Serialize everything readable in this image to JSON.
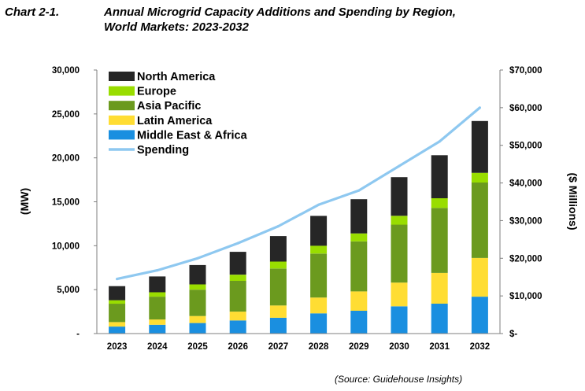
{
  "header": {
    "label": "Chart 2-1.",
    "title_line1": "Annual Microgrid Capacity Additions and Spending by Region,",
    "title_line2": "World Markets: 2023-2032"
  },
  "source": "(Source: Guidehouse Insights)",
  "chart_data": {
    "type": "bar",
    "stacked": true,
    "categories": [
      "2023",
      "2024",
      "2025",
      "2026",
      "2027",
      "2028",
      "2029",
      "2030",
      "2031",
      "2032"
    ],
    "ylabel": "(MW)",
    "y2label": "($ Millions)",
    "ylim": [
      0,
      30000
    ],
    "y2lim": [
      0,
      70000
    ],
    "yticks": [
      "-",
      "5,000",
      "10,000",
      "15,000",
      "20,000",
      "25,000",
      "30,000"
    ],
    "y2ticks": [
      "$-",
      "$10,000",
      "$20,000",
      "$30,000",
      "$40,000",
      "$50,000",
      "$60,000",
      "$70,000"
    ],
    "legend_position": "top-left",
    "grid": false,
    "series": [
      {
        "name": "Middle East & Africa",
        "color": "#1a8fe0",
        "values": [
          800,
          1000,
          1200,
          1500,
          1800,
          2300,
          2600,
          3100,
          3400,
          4200
        ]
      },
      {
        "name": "Latin America",
        "color": "#ffdd33",
        "values": [
          500,
          600,
          800,
          1000,
          1400,
          1800,
          2200,
          2700,
          3500,
          4400
        ]
      },
      {
        "name": "Asia Pacific",
        "color": "#6b9a1e",
        "values": [
          2100,
          2600,
          3000,
          3500,
          4200,
          5000,
          5700,
          6600,
          7400,
          8600
        ]
      },
      {
        "name": "Europe",
        "color": "#99dd00",
        "values": [
          400,
          500,
          600,
          700,
          800,
          900,
          900,
          1000,
          1100,
          1100
        ]
      },
      {
        "name": "North America",
        "color": "#262626",
        "values": [
          1600,
          1800,
          2200,
          2600,
          2900,
          3400,
          3900,
          4400,
          4900,
          5900
        ]
      }
    ],
    "line_series": {
      "name": "Spending",
      "color": "#8ec8f0",
      "axis": "right",
      "values": [
        14500,
        16800,
        20000,
        24000,
        28500,
        34200,
        38000,
        44500,
        51000,
        60000
      ]
    },
    "legend_order": [
      "North America",
      "Europe",
      "Asia Pacific",
      "Latin America",
      "Middle East & Africa",
      "Spending"
    ]
  }
}
